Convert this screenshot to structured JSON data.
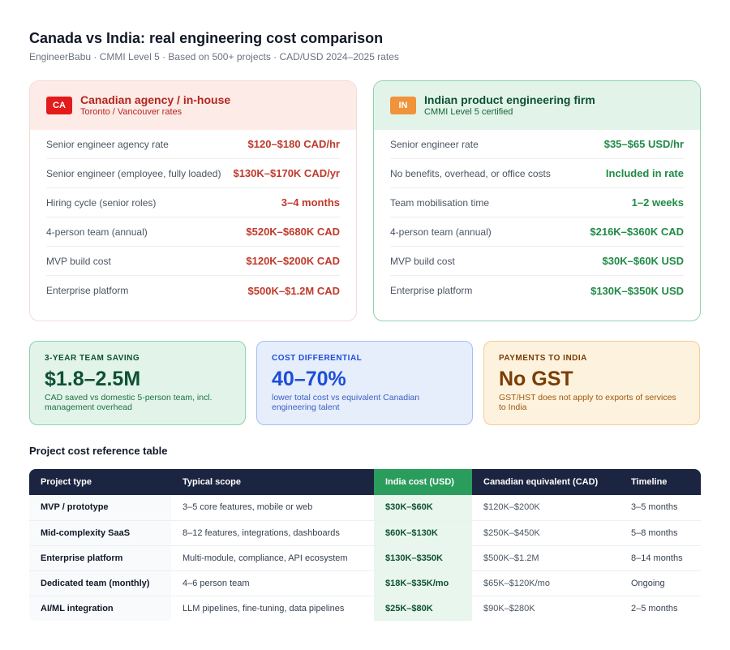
{
  "header": {
    "title": "Canada vs India: real engineering cost comparison",
    "subtitle": "EngineerBabu · CMMI Level 5 · Based on 500+ projects · CAD/USD 2024–2025 rates"
  },
  "canada_card": {
    "badge": "CA",
    "title": "Canadian agency / in-house",
    "subtitle": "Toronto / Vancouver rates",
    "rows": [
      {
        "label": "Senior engineer agency rate",
        "value": "$120–$180 CAD/hr"
      },
      {
        "label": "Senior engineer (employee, fully loaded)",
        "value": "$130K–$170K CAD/yr"
      },
      {
        "label": "Hiring cycle (senior roles)",
        "value": "3–4 months"
      },
      {
        "label": "4-person team (annual)",
        "value": "$520K–$680K CAD"
      },
      {
        "label": "MVP build cost",
        "value": "$120K–$200K CAD"
      },
      {
        "label": "Enterprise platform",
        "value": "$500K–$1.2M CAD"
      }
    ]
  },
  "india_card": {
    "badge": "IN",
    "title": "Indian product engineering firm",
    "subtitle": "CMMI Level 5 certified",
    "rows": [
      {
        "label": "Senior engineer rate",
        "value": "$35–$65 USD/hr"
      },
      {
        "label": "No benefits, overhead, or office costs",
        "value": "Included in rate"
      },
      {
        "label": "Team mobilisation time",
        "value": "1–2 weeks"
      },
      {
        "label": "4-person team (annual)",
        "value": "$216K–$360K CAD"
      },
      {
        "label": "MVP build cost",
        "value": "$30K–$60K USD"
      },
      {
        "label": "Enterprise platform",
        "value": "$130K–$350K USD"
      }
    ]
  },
  "stats": [
    {
      "label": "3-YEAR TEAM SAVING",
      "value": "$1.8–2.5M",
      "desc": "CAD saved vs domestic 5-person team, incl. management overhead"
    },
    {
      "label": "COST DIFFERENTIAL",
      "value": "40–70%",
      "desc": "lower total cost vs equivalent Canadian engineering talent"
    },
    {
      "label": "PAYMENTS TO INDIA",
      "value": "No GST",
      "desc": "GST/HST does not apply to exports of services to India"
    }
  ],
  "table": {
    "title": "Project cost reference table",
    "headers": [
      "Project type",
      "Typical scope",
      "India cost (USD)",
      "Canadian equivalent (CAD)",
      "Timeline"
    ],
    "rows": [
      [
        "MVP / prototype",
        "3–5 core features, mobile or web",
        "$30K–$60K",
        "$120K–$200K",
        "3–5 months"
      ],
      [
        "Mid-complexity SaaS",
        "8–12 features, integrations, dashboards",
        "$60K–$130K",
        "$250K–$450K",
        "5–8 months"
      ],
      [
        "Enterprise platform",
        "Multi-module, compliance, API ecosystem",
        "$130K–$350K",
        "$500K–$1.2M",
        "8–14 months"
      ],
      [
        "Dedicated team (monthly)",
        "4–6 person team",
        "$18K–$35K/mo",
        "$65K–$120K/mo",
        "Ongoing"
      ],
      [
        "AI/ML integration",
        "LLM pipelines, fine-tuning, data pipelines",
        "$25K–$80K",
        "$90K–$280K",
        "2–5 months"
      ]
    ]
  },
  "colors": {
    "canada_accent": "#c0392b",
    "india_accent": "#1f8a46",
    "table_header": "#1b2541",
    "india_header": "#2a9d5c"
  }
}
